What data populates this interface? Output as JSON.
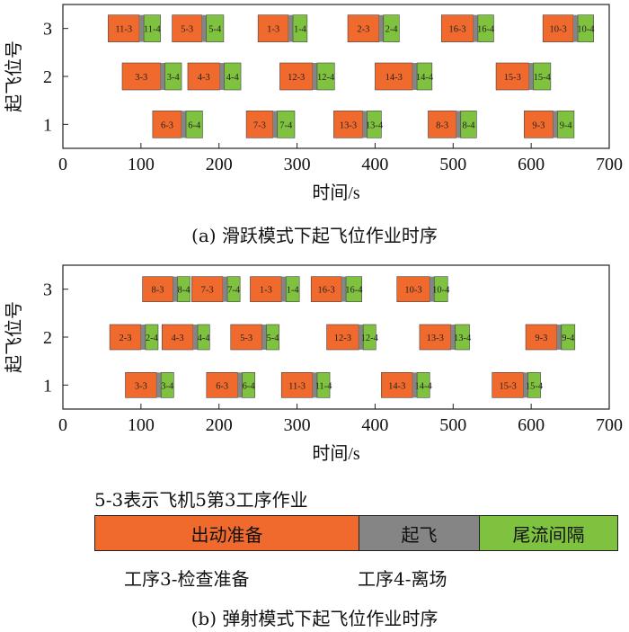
{
  "colors": {
    "prep": "#f06a2d",
    "takeoff": "#858585",
    "tail": "#7fc240",
    "frame": "#222222"
  },
  "chart_data": [
    {
      "type": "gantt",
      "ylabel": "起飞位号",
      "xlabel": "时间/s",
      "xlim": [
        0,
        700
      ],
      "xticks": [
        0,
        100,
        200,
        300,
        400,
        500,
        600,
        700
      ],
      "ylim": [
        0.5,
        3.5
      ],
      "yticks": [
        1,
        2,
        3
      ],
      "caption": "(a) 滑跃模式下起飞位作业时序",
      "tasks": [
        {
          "position": 3,
          "label_a": "11-3",
          "label_b": "11-4",
          "start": 58,
          "takeoff": 98,
          "end": 125
        },
        {
          "position": 3,
          "label_a": "5-3",
          "label_b": "5-4",
          "start": 140,
          "takeoff": 178,
          "end": 206
        },
        {
          "position": 3,
          "label_a": "1-3",
          "label_b": "1-4",
          "start": 250,
          "takeoff": 289,
          "end": 313
        },
        {
          "position": 3,
          "label_a": "2-3",
          "label_b": "2-4",
          "start": 365,
          "takeoff": 405,
          "end": 431
        },
        {
          "position": 3,
          "label_a": "16-3",
          "label_b": "16-4",
          "start": 485,
          "takeoff": 526,
          "end": 552
        },
        {
          "position": 3,
          "label_a": "10-3",
          "label_b": "10-4",
          "start": 615,
          "takeoff": 654,
          "end": 680
        },
        {
          "position": 2,
          "label_a": "3-3",
          "label_b": "3-4",
          "start": 76,
          "takeoff": 125,
          "end": 152
        },
        {
          "position": 2,
          "label_a": "4-3",
          "label_b": "4-4",
          "start": 160,
          "takeoff": 201,
          "end": 228
        },
        {
          "position": 2,
          "label_a": "12-3",
          "label_b": "12-4",
          "start": 278,
          "takeoff": 320,
          "end": 348
        },
        {
          "position": 2,
          "label_a": "14-3",
          "label_b": "14-4",
          "start": 400,
          "takeoff": 448,
          "end": 473
        },
        {
          "position": 2,
          "label_a": "15-3",
          "label_b": "15-4",
          "start": 555,
          "takeoff": 597,
          "end": 625
        },
        {
          "position": 1,
          "label_a": "6-3",
          "label_b": "6-4",
          "start": 115,
          "takeoff": 152,
          "end": 179
        },
        {
          "position": 1,
          "label_a": "7-3",
          "label_b": "7-4",
          "start": 235,
          "takeoff": 269,
          "end": 297
        },
        {
          "position": 1,
          "label_a": "13-3",
          "label_b": "13-4",
          "start": 347,
          "takeoff": 384,
          "end": 408
        },
        {
          "position": 1,
          "label_a": "8-3",
          "label_b": "8-4",
          "start": 468,
          "takeoff": 504,
          "end": 530
        },
        {
          "position": 1,
          "label_a": "9-3",
          "label_b": "9-4",
          "start": 591,
          "takeoff": 628,
          "end": 655
        }
      ]
    },
    {
      "type": "gantt",
      "ylabel": "起飞位号",
      "xlabel": "时间/s",
      "xlim": [
        0,
        700
      ],
      "xticks": [
        0,
        100,
        200,
        300,
        400,
        500,
        600,
        700
      ],
      "ylim": [
        0.5,
        3.5
      ],
      "yticks": [
        1,
        2,
        3
      ],
      "caption": "(b) 弹射模式下起飞位作业时序",
      "tasks": [
        {
          "position": 3,
          "label_a": "8-3",
          "label_b": "8-4",
          "start": 102,
          "takeoff": 141,
          "end": 163
        },
        {
          "position": 3,
          "label_a": "7-3",
          "label_b": "7-4",
          "start": 165,
          "takeoff": 205,
          "end": 227
        },
        {
          "position": 3,
          "label_a": "1-3",
          "label_b": "1-4",
          "start": 240,
          "takeoff": 280,
          "end": 303
        },
        {
          "position": 3,
          "label_a": "16-3",
          "label_b": "16-4",
          "start": 318,
          "takeoff": 357,
          "end": 383
        },
        {
          "position": 3,
          "label_a": "10-3",
          "label_b": "10-4",
          "start": 428,
          "takeoff": 470,
          "end": 493
        },
        {
          "position": 2,
          "label_a": "2-3",
          "label_b": "2-4",
          "start": 60,
          "takeoff": 100,
          "end": 122
        },
        {
          "position": 2,
          "label_a": "4-3",
          "label_b": "4-4",
          "start": 127,
          "takeoff": 167,
          "end": 188
        },
        {
          "position": 2,
          "label_a": "5-3",
          "label_b": "5-4",
          "start": 215,
          "takeoff": 255,
          "end": 277
        },
        {
          "position": 2,
          "label_a": "12-3",
          "label_b": "12-4",
          "start": 338,
          "takeoff": 379,
          "end": 401
        },
        {
          "position": 2,
          "label_a": "13-3",
          "label_b": "13-4",
          "start": 457,
          "takeoff": 497,
          "end": 521
        },
        {
          "position": 2,
          "label_a": "9-3",
          "label_b": "9-4",
          "start": 593,
          "takeoff": 633,
          "end": 656
        },
        {
          "position": 1,
          "label_a": "3-3",
          "label_b": "3-4",
          "start": 80,
          "takeoff": 120,
          "end": 142
        },
        {
          "position": 1,
          "label_a": "6-3",
          "label_b": "6-4",
          "start": 184,
          "takeoff": 224,
          "end": 246
        },
        {
          "position": 1,
          "label_a": "11-3",
          "label_b": "11-4",
          "start": 280,
          "takeoff": 320,
          "end": 342
        },
        {
          "position": 1,
          "label_a": "14-3",
          "label_b": "14-4",
          "start": 408,
          "takeoff": 448,
          "end": 470
        },
        {
          "position": 1,
          "label_a": "15-3",
          "label_b": "15-4",
          "start": 550,
          "takeoff": 590,
          "end": 612
        }
      ]
    }
  ],
  "legend": {
    "title": "5-3表示飞机5第3工序作业",
    "segments": {
      "prep": "出动准备",
      "takeoff": "起飞",
      "tail": "尾流间隔"
    },
    "notes": {
      "step3": "工序3-检查准备",
      "step4": "工序4-离场"
    }
  }
}
